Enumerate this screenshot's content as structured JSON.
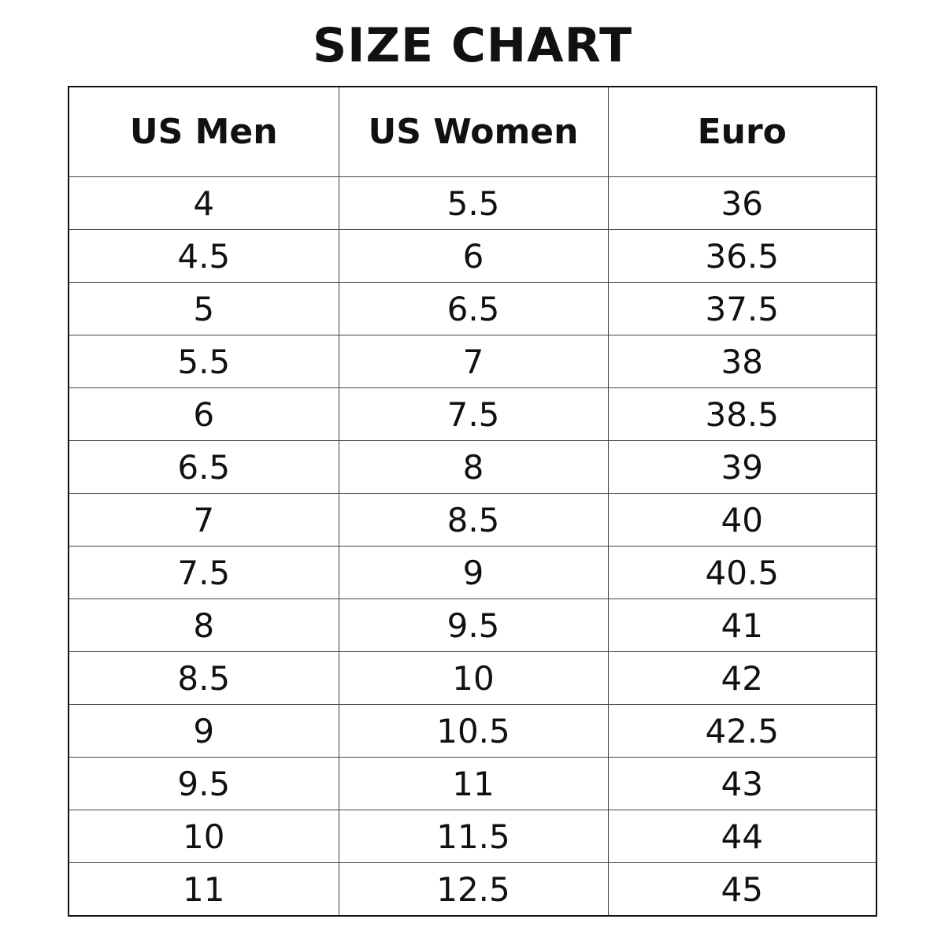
{
  "title": "SIZE CHART",
  "table": {
    "headers": [
      "US Men",
      "US Women",
      "Euro"
    ],
    "rows": [
      [
        "4",
        "5.5",
        "36"
      ],
      [
        "4.5",
        "6",
        "36.5"
      ],
      [
        "5",
        "6.5",
        "37.5"
      ],
      [
        "5.5",
        "7",
        "38"
      ],
      [
        "6",
        "7.5",
        "38.5"
      ],
      [
        "6.5",
        "8",
        "39"
      ],
      [
        "7",
        "8.5",
        "40"
      ],
      [
        "7.5",
        "9",
        "40.5"
      ],
      [
        "8",
        "9.5",
        "41"
      ],
      [
        "8.5",
        "10",
        "42"
      ],
      [
        "9",
        "10.5",
        "42.5"
      ],
      [
        "9.5",
        "11",
        "43"
      ],
      [
        "10",
        "11.5",
        "44"
      ],
      [
        "11",
        "12.5",
        "45"
      ]
    ]
  }
}
